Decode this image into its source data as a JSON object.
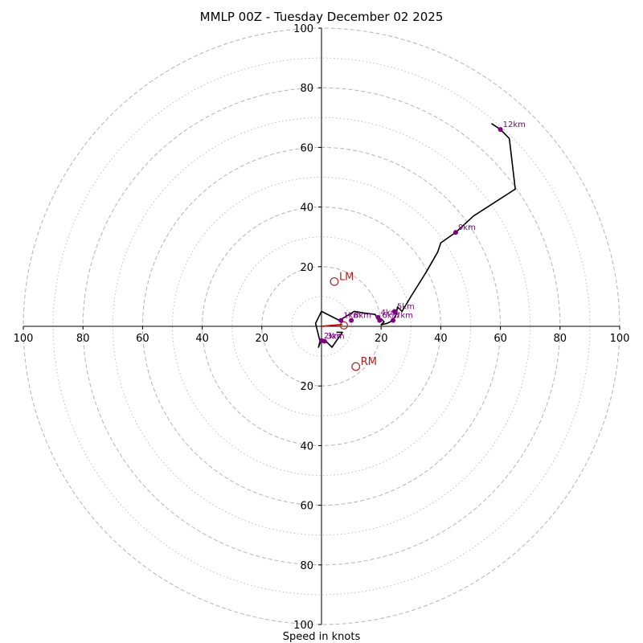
{
  "chart_data": {
    "type": "hodograph",
    "title": "MMLP 00Z - Tuesday December 02 2025",
    "xlabel": "Speed in knots",
    "range": [
      -100,
      100
    ],
    "dashed_rings": [
      20,
      40,
      60,
      80,
      100
    ],
    "dotted_rings": [
      10,
      30,
      50,
      70,
      90
    ],
    "x_tick_labels": [
      "100",
      "80",
      "60",
      "40",
      "20",
      "20",
      "40",
      "60",
      "80",
      "100"
    ],
    "x_tick_values": [
      -100,
      -80,
      -60,
      -40,
      -20,
      20,
      40,
      60,
      80,
      100
    ],
    "y_tick_labels": [
      "100",
      "80",
      "60",
      "40",
      "20",
      "20",
      "40",
      "60",
      "80",
      "100"
    ],
    "y_tick_values": [
      100,
      80,
      60,
      40,
      20,
      -20,
      -40,
      -60,
      -80,
      -100
    ],
    "colors": {
      "trace": "#000000",
      "shear_vector": "#cc0000",
      "storm_motion": "#b22222",
      "height_marker": "#800080",
      "ring": "#bbbbbb"
    },
    "trace_uv": [
      [
        0,
        -4.5
      ],
      [
        -1,
        -7
      ],
      [
        -0.5,
        -5
      ],
      [
        -2,
        1
      ],
      [
        0,
        5
      ],
      [
        4,
        3
      ],
      [
        6,
        2
      ],
      [
        11,
        5
      ],
      [
        14,
        4.5
      ],
      [
        18,
        4
      ],
      [
        18.5,
        3
      ],
      [
        20,
        2.5
      ],
      [
        21,
        1.5
      ],
      [
        20,
        0.5
      ],
      [
        22,
        1
      ],
      [
        24,
        2
      ],
      [
        25,
        4
      ],
      [
        25.5,
        6.5
      ],
      [
        27,
        5
      ],
      [
        30,
        10
      ],
      [
        35,
        18
      ],
      [
        39,
        25
      ],
      [
        40,
        28
      ],
      [
        45,
        31.5
      ],
      [
        51,
        37
      ],
      [
        65,
        46
      ],
      [
        63,
        63
      ],
      [
        60,
        66
      ],
      [
        57,
        68
      ]
    ],
    "trace_uv_low": [
      [
        0,
        -4.5
      ],
      [
        0.5,
        -4.5
      ],
      [
        1,
        -4.5
      ],
      [
        3.5,
        -7
      ],
      [
        7,
        -2
      ],
      [
        5,
        -2
      ]
    ],
    "height_markers": [
      {
        "label": "1km",
        "u": 6.5,
        "v": 2
      },
      {
        "label": "2km",
        "u": 0,
        "v": -4.8
      },
      {
        "label": "3km",
        "u": 1,
        "v": -5
      },
      {
        "label": "4km",
        "u": 19,
        "v": 3
      },
      {
        "label": "5km",
        "u": 24.5,
        "v": 5
      },
      {
        "label": "6km",
        "u": 19.5,
        "v": 2
      },
      {
        "label": "7km",
        "u": 24,
        "v": 2
      },
      {
        "label": "8km",
        "u": 10,
        "v": 2
      },
      {
        "label": "9km",
        "u": 45,
        "v": 31.5
      },
      {
        "label": "12km",
        "u": 60,
        "v": 66
      }
    ],
    "shear_vector": {
      "from": [
        0,
        0
      ],
      "to": [
        7,
        0.6
      ]
    },
    "mean_wind_marker": {
      "u": 7.5,
      "v": 0.3
    },
    "storm_motion": [
      {
        "label": "LM",
        "u": 4.3,
        "v": 15
      },
      {
        "label": "RM",
        "u": 11.5,
        "v": -13.5
      }
    ]
  }
}
